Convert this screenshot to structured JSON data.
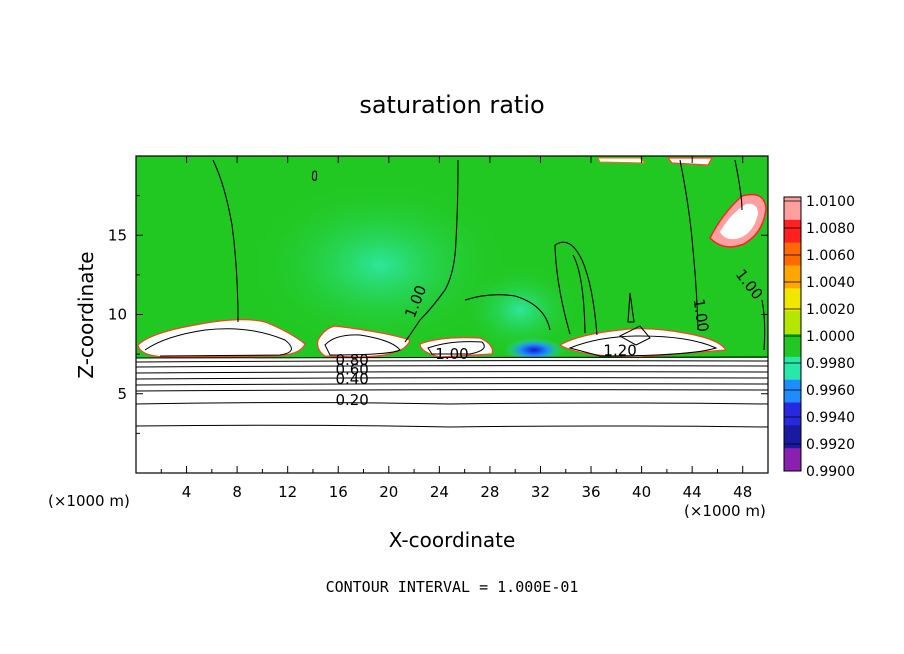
{
  "chart_data": {
    "type": "heatmap",
    "title": "saturation ratio",
    "xlabel": "X-coordinate",
    "ylabel": "Z-coordinate",
    "x_unit": "(×1000 m)",
    "y_unit": "(×1000 m)",
    "xlim": [
      0,
      50
    ],
    "ylim": [
      0,
      20
    ],
    "x_ticks": [
      "4",
      "8",
      "12",
      "16",
      "20",
      "24",
      "28",
      "32",
      "36",
      "40",
      "44",
      "48"
    ],
    "y_ticks": [
      "5",
      "10",
      "15"
    ],
    "colorbar": {
      "labels": [
        "1.0100",
        "1.0080",
        "1.0060",
        "1.0040",
        "1.0020",
        "1.0000",
        "0.9980",
        "0.9960",
        "0.9940",
        "0.9920",
        "0.9900"
      ],
      "colors": [
        "#ff9fa0",
        "#ff2020",
        "#ff6a00",
        "#ffa600",
        "#f0e600",
        "#b4e600",
        "#22c822",
        "#27e8a8",
        "#1e8cff",
        "#2828e0",
        "#1a1aa0",
        "#8a20b0"
      ]
    },
    "contour_labels": [
      {
        "text": "1.00",
        "x": 22.5,
        "y": 10.7,
        "rotate": -68
      },
      {
        "text": "1.00",
        "x": 44.3,
        "y": 9.9,
        "rotate": 82
      },
      {
        "text": "1.00",
        "x": 48.2,
        "y": 11.7,
        "rotate": 52
      },
      {
        "text": "1.00",
        "x": 25.0,
        "y": 7.2,
        "rotate": 0
      },
      {
        "text": "1.20",
        "x": 38.3,
        "y": 7.4,
        "rotate": 0
      },
      {
        "text": "0.80",
        "x": 17.1,
        "y": 6.8,
        "rotate": 0
      },
      {
        "text": "0.60",
        "x": 17.1,
        "y": 6.2,
        "rotate": 0
      },
      {
        "text": "0.40",
        "x": 17.1,
        "y": 5.6,
        "rotate": 0
      },
      {
        "text": "0.20",
        "x": 17.1,
        "y": 4.3,
        "rotate": 0
      }
    ],
    "annotation": "CONTOUR INTERVAL = 1.000E-01"
  }
}
